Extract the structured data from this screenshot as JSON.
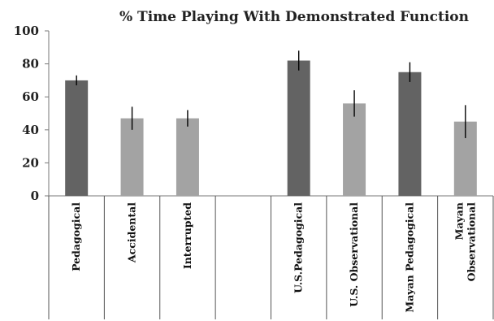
{
  "chart_data": {
    "type": "bar",
    "title": "% Time Playing With Demonstrated Function",
    "xlabel": "",
    "ylabel": "",
    "ylim": [
      0,
      100
    ],
    "yticks": [
      0,
      20,
      40,
      60,
      80,
      100
    ],
    "grid": false,
    "legend": "none",
    "categories": [
      [
        "Pedagogical"
      ],
      [
        "Accidental"
      ],
      [
        "Interrupted"
      ],
      [
        ""
      ],
      [
        "U.S.Pedagogical"
      ],
      [
        "U.S. Observational"
      ],
      [
        "Mayan Pedagogical"
      ],
      [
        "Mayan",
        "Observational"
      ]
    ],
    "values": [
      70,
      47,
      47,
      null,
      82,
      56,
      75,
      45
    ],
    "error": [
      3,
      7,
      5,
      null,
      6,
      8,
      6,
      10
    ],
    "bar_colors": [
      "#636363",
      "#a3a3a3",
      "#a3a3a3",
      null,
      "#636363",
      "#a3a3a3",
      "#636363",
      "#a3a3a3"
    ]
  }
}
